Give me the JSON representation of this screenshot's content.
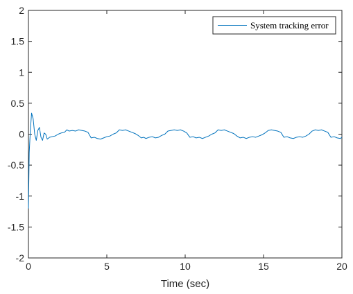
{
  "chart_data": {
    "type": "line",
    "title": "",
    "xlabel": "Time (sec)",
    "ylabel": "",
    "xlim": [
      0,
      20
    ],
    "ylim": [
      -2,
      2
    ],
    "xticks": [
      0,
      5,
      10,
      15,
      20
    ],
    "xtick_labels": [
      "0",
      "5",
      "10",
      "15",
      "20"
    ],
    "yticks": [
      2,
      1.5,
      1,
      0.5,
      0,
      -0.5,
      -1,
      -1.5,
      -2
    ],
    "ytick_labels": [
      "2",
      "1.5",
      "1",
      "0.5",
      "0",
      "-0.5",
      "-1",
      "-1.5",
      "-2"
    ],
    "grid": false,
    "legend_position": "top-right",
    "series": [
      {
        "name": "System tracking error",
        "color": "#0072BD",
        "x": [
          0,
          0.05,
          0.12,
          0.2,
          0.3,
          0.4,
          0.5,
          0.6,
          0.7,
          0.8,
          0.9,
          1.0,
          1.1,
          1.2,
          1.35,
          1.5,
          1.7,
          1.9,
          2.1,
          2.3,
          2.45,
          2.6,
          2.8,
          3.0,
          3.2,
          3.4,
          3.6,
          3.8,
          4.0,
          4.2,
          4.4,
          4.6,
          4.8,
          5.0,
          5.2,
          5.4,
          5.6,
          5.8,
          6.0,
          6.2,
          6.4,
          6.6,
          6.8,
          7.0,
          7.2,
          7.35,
          7.5,
          7.7,
          7.9,
          8.1,
          8.3,
          8.5,
          8.7,
          8.9,
          9.1,
          9.3,
          9.5,
          9.7,
          9.9,
          10.1,
          10.3,
          10.5,
          10.7,
          10.9,
          11.1,
          11.3,
          11.5,
          11.7,
          11.9,
          12.1,
          12.3,
          12.5,
          12.7,
          12.9,
          13.1,
          13.3,
          13.5,
          13.7,
          13.9,
          14.1,
          14.3,
          14.5,
          14.7,
          14.9,
          15.1,
          15.3,
          15.5,
          15.7,
          15.9,
          16.1,
          16.3,
          16.5,
          16.7,
          16.9,
          17.1,
          17.3,
          17.5,
          17.7,
          17.9,
          18.1,
          18.3,
          18.5,
          18.7,
          18.9,
          19.1,
          19.3,
          19.5,
          19.7,
          19.9,
          20.0
        ],
        "values": [
          -1.2,
          -0.3,
          0.05,
          0.34,
          0.25,
          0.0,
          -0.1,
          0.06,
          0.11,
          -0.05,
          -0.1,
          0.02,
          0.0,
          -0.08,
          -0.05,
          -0.04,
          -0.03,
          0.0,
          0.02,
          0.03,
          0.07,
          0.05,
          0.06,
          0.05,
          0.07,
          0.06,
          0.05,
          0.03,
          -0.06,
          -0.05,
          -0.07,
          -0.08,
          -0.06,
          -0.04,
          -0.03,
          0.0,
          0.02,
          0.07,
          0.06,
          0.07,
          0.05,
          0.03,
          0.01,
          -0.02,
          -0.06,
          -0.05,
          -0.07,
          -0.05,
          -0.04,
          -0.06,
          -0.05,
          -0.02,
          0.0,
          0.05,
          0.06,
          0.07,
          0.06,
          0.07,
          0.05,
          0.02,
          -0.05,
          -0.04,
          -0.06,
          -0.05,
          -0.07,
          -0.05,
          -0.03,
          0.0,
          0.02,
          0.07,
          0.06,
          0.07,
          0.05,
          0.03,
          0.01,
          -0.03,
          -0.06,
          -0.05,
          -0.07,
          -0.05,
          -0.04,
          -0.05,
          -0.03,
          -0.01,
          0.02,
          0.06,
          0.07,
          0.06,
          0.05,
          0.03,
          -0.05,
          -0.04,
          -0.06,
          -0.07,
          -0.05,
          -0.04,
          -0.05,
          -0.03,
          0.0,
          0.05,
          0.07,
          0.06,
          0.07,
          0.05,
          0.03,
          -0.05,
          -0.04,
          -0.06,
          -0.07,
          -0.05
        ]
      }
    ]
  }
}
